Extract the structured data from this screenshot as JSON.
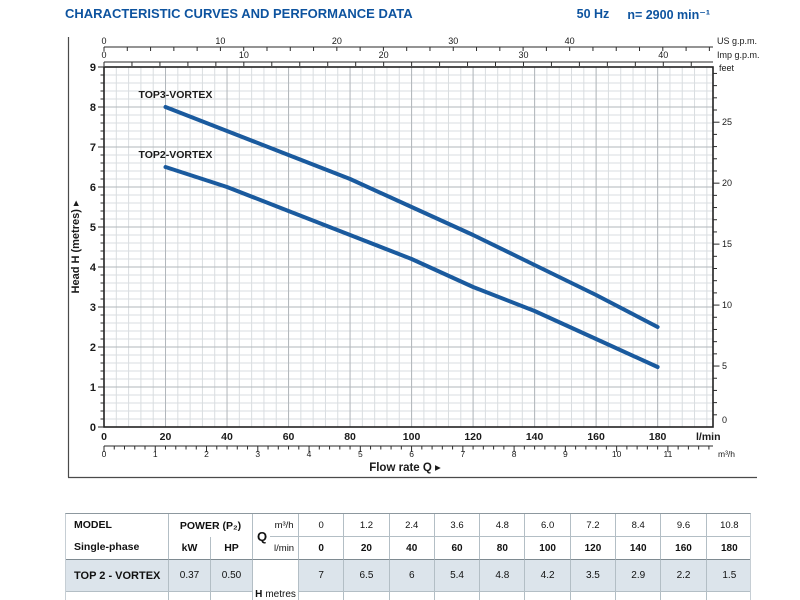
{
  "header": {
    "title": "CHARACTERISTIC CURVES AND PERFORMANCE DATA",
    "frequency": "50 Hz",
    "speed": "n= 2900 min⁻¹"
  },
  "colors": {
    "brand_blue": "#0d539f",
    "curve_blue": "#1a5a9e",
    "grid_minor": "#d9dde0",
    "grid_major": "#b2b7bb",
    "row_shade": "#dce4eb",
    "table_line": "#b3bec5",
    "table_line_strong": "#7e8a91"
  },
  "chart_data": {
    "type": "line",
    "xlabel": "Flow rate Q",
    "ylabel": "Head H (metres)",
    "arrow": "▸",
    "x_axes": {
      "us_gpm": {
        "unit": "US g.p.m.",
        "labels": [
          0,
          10,
          20,
          30,
          40
        ],
        "lmin_per_unit": 3.785,
        "minor_step": 2
      },
      "imp_gpm": {
        "unit": "Imp g.p.m.",
        "labels": [
          0,
          10,
          20,
          30,
          40
        ],
        "lmin_per_unit": 4.546,
        "minor_step": 2
      },
      "lmin": {
        "unit": "l/min",
        "labels": [
          0,
          20,
          40,
          60,
          80,
          100,
          120,
          140,
          160,
          180
        ],
        "max": 198
      },
      "m3h": {
        "unit": "m³/h",
        "labels": [
          0,
          1,
          2,
          3,
          4,
          5,
          6,
          7,
          8,
          9,
          10,
          11
        ],
        "lmin_per_unit": 16.6667,
        "minor_step": 0.2
      }
    },
    "y_axes": {
      "metres": {
        "labels": [
          0,
          1,
          2,
          3,
          4,
          5,
          6,
          7,
          8,
          9
        ],
        "max": 9,
        "minor_step": 0.2
      },
      "feet": {
        "unit": "feet",
        "labels": [
          0,
          5,
          10,
          15,
          20,
          25
        ],
        "metres_per_unit": 0.3048,
        "minor_step": 1,
        "max_tick": 29
      }
    },
    "grid": {
      "minor_lmin": 4,
      "major_lmin": 20,
      "minor_m": 0.2,
      "major_m": 1
    },
    "series": [
      {
        "name": "TOP3-VORTEX",
        "points": [
          [
            20,
            8.0
          ],
          [
            40,
            7.4
          ],
          [
            60,
            6.8
          ],
          [
            80,
            6.2
          ],
          [
            100,
            5.5
          ],
          [
            120,
            4.8
          ],
          [
            140,
            4.05
          ],
          [
            160,
            3.3
          ],
          [
            180,
            2.5
          ]
        ]
      },
      {
        "name": "TOP2-VORTEX",
        "points": [
          [
            20,
            6.5
          ],
          [
            40,
            6.0
          ],
          [
            60,
            5.4
          ],
          [
            80,
            4.8
          ],
          [
            100,
            4.2
          ],
          [
            120,
            3.5
          ],
          [
            140,
            2.9
          ],
          [
            160,
            2.2
          ],
          [
            180,
            1.5
          ]
        ]
      }
    ]
  },
  "table": {
    "q_label": "Q",
    "header_row1": {
      "model": "MODEL",
      "power": "POWER (P₂)",
      "unit": "m³/h",
      "values": [
        "0",
        "1.2",
        "2.4",
        "3.6",
        "4.8",
        "6.0",
        "7.2",
        "8.4",
        "9.6",
        "10.8"
      ]
    },
    "header_row2": {
      "model": "Single-phase",
      "kw": "kW",
      "hp": "HP",
      "unit": "l/min",
      "values": [
        "0",
        "20",
        "40",
        "60",
        "80",
        "100",
        "120",
        "140",
        "160",
        "180"
      ]
    },
    "rows": [
      {
        "model": "TOP 2 - VORTEX",
        "kw": "0.37",
        "hp": "0.50",
        "values": [
          "7",
          "6.5",
          "6",
          "5.4",
          "4.8",
          "4.2",
          "3.5",
          "2.9",
          "2.2",
          "1.5"
        ]
      }
    ],
    "h_label": {
      "bold": "H",
      "rest": "metres"
    }
  }
}
